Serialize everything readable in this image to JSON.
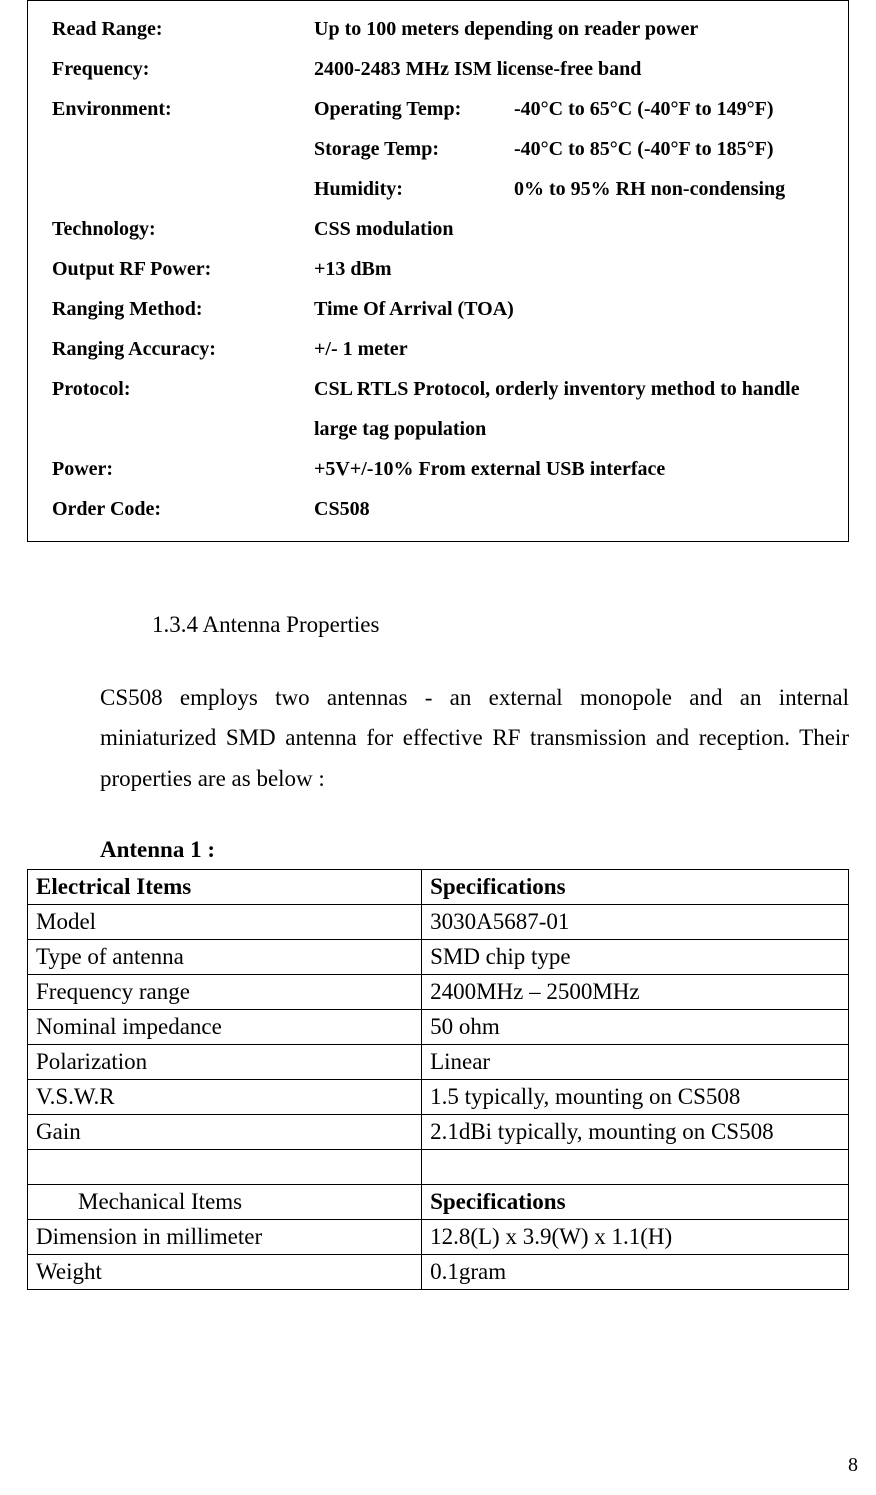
{
  "specs": {
    "readRange": {
      "label": "Read Range:",
      "value": "Up to 100 meters depending on reader power"
    },
    "frequency": {
      "label": "Frequency:",
      "value": "2400-2483 MHz ISM license-free band"
    },
    "environment": {
      "label": "Environment:",
      "opTemp": {
        "sub": "Operating Temp:",
        "val": "-40°C to 65°C (-40°F to 149°F)"
      },
      "stTemp": {
        "sub": "Storage Temp:",
        "val": "-40°C to 85°C (-40°F to 185°F)"
      },
      "humidity": {
        "sub": "Humidity:",
        "val": "0% to 95% RH non-condensing"
      }
    },
    "technology": {
      "label": "Technology:",
      "value": "CSS modulation"
    },
    "outputRF": {
      "label": "Output RF Power:",
      "value": "+13 dBm"
    },
    "rangingMethod": {
      "label": "Ranging Method:",
      "value": "Time Of Arrival (TOA)"
    },
    "rangingAccuracy": {
      "label": "Ranging Accuracy:",
      "value": "+/- 1 meter"
    },
    "protocol": {
      "label": "Protocol:",
      "value1": "CSL RTLS Protocol, orderly inventory method to handle",
      "value2": "large tag population"
    },
    "power": {
      "label": "Power:",
      "value": "+5V+/-10% From external USB interface"
    },
    "orderCode": {
      "label": "Order Code:",
      "value": "CS508"
    }
  },
  "section": {
    "heading": "1.3.4  Antenna Properties",
    "body": "CS508 employs two antennas - an external monopole and an internal miniaturized SMD antenna for effective RF transmission and reception. Their properties are as below :"
  },
  "antenna1": {
    "title": "Antenna 1 :",
    "headers": {
      "elec": "Electrical Items",
      "spec": "Specifications",
      "mech": "Mechanical Items"
    },
    "rows": {
      "model": {
        "k": "Model",
        "v": "3030A5687-01"
      },
      "type": {
        "k": "Type of antenna",
        "v": "SMD chip type"
      },
      "freq": {
        "k": "Frequency range",
        "v": "2400MHz – 2500MHz"
      },
      "imp": {
        "k": "Nominal impedance",
        "v": "50 ohm"
      },
      "pol": {
        "k": "Polarization",
        "v": "Linear"
      },
      "vswr": {
        "k": "V.S.W.R",
        "v": "1.5 typically, mounting on CS508"
      },
      "gain": {
        "k": "Gain",
        "v": "2.1dBi typically, mounting on CS508"
      },
      "dim": {
        "k": "Dimension in millimeter",
        "v": "12.8(L) x 3.9(W) x 1.1(H)"
      },
      "weight": {
        "k": "Weight",
        "v": "0.1gram"
      }
    }
  },
  "pageNumber": "8"
}
